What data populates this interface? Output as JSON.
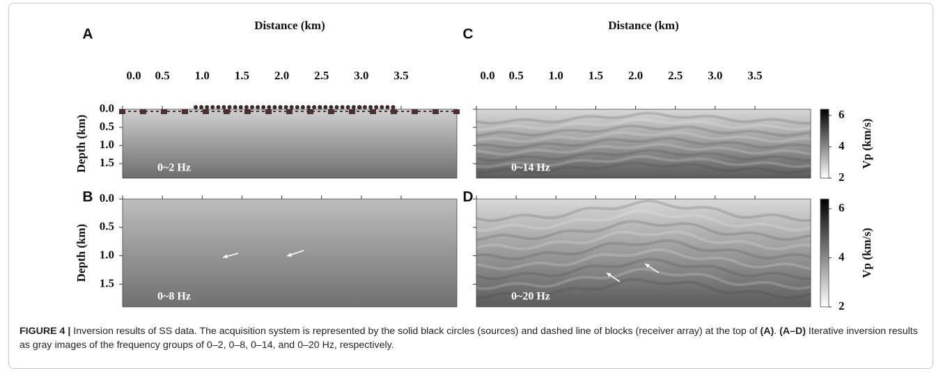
{
  "panels": [
    {
      "label": "A",
      "xlabel": "Distance (km)",
      "ylabel": "Depth (km)",
      "annotation": "0~2 Hz"
    },
    {
      "label": "B",
      "ylabel": "Depth (km)",
      "annotation": "0~8 Hz"
    },
    {
      "label": "C",
      "xlabel": "Distance (km)",
      "annotation": "0~14 Hz"
    },
    {
      "label": "D",
      "annotation": "0~20 Hz"
    }
  ],
  "x_axis": {
    "xlim": [
      0,
      4.2
    ],
    "xticks": [
      {
        "value": 0,
        "label": "0.0"
      },
      0.5,
      {
        "value": 1,
        "label": "1.0"
      },
      1.5,
      {
        "value": 2,
        "label": "2.0"
      },
      2.5,
      {
        "value": 3,
        "label": "3.0"
      },
      3.5
    ]
  },
  "y_axis": {
    "ylim": [
      0,
      1.9
    ],
    "yticks": [
      {
        "value": 0,
        "label": "0.0"
      },
      0.5,
      {
        "value": 1,
        "label": "1.0"
      },
      1.5
    ]
  },
  "colorbar": {
    "label": "Vp (km/s)",
    "lim": [
      2,
      6.4
    ],
    "ticks": [
      2,
      4,
      6
    ]
  },
  "caption": [
    {
      "text": "FIGURE 4 |",
      "bold": true
    },
    {
      "text": " Inversion results of SS data. The acquisition system is represented by the solid black circles (sources) and dashed line of blocks (receiver array) at the top of ",
      "bold": false
    },
    {
      "text": "(A)",
      "bold": true
    },
    {
      "text": ". ",
      "bold": false
    },
    {
      "text": "(A–D)",
      "bold": true
    },
    {
      "text": " Iterative inversion results as gray images of the frequency groups of 0–2, 0–8, 0–14, and 0–20 Hz, respectively.",
      "bold": false
    }
  ]
}
